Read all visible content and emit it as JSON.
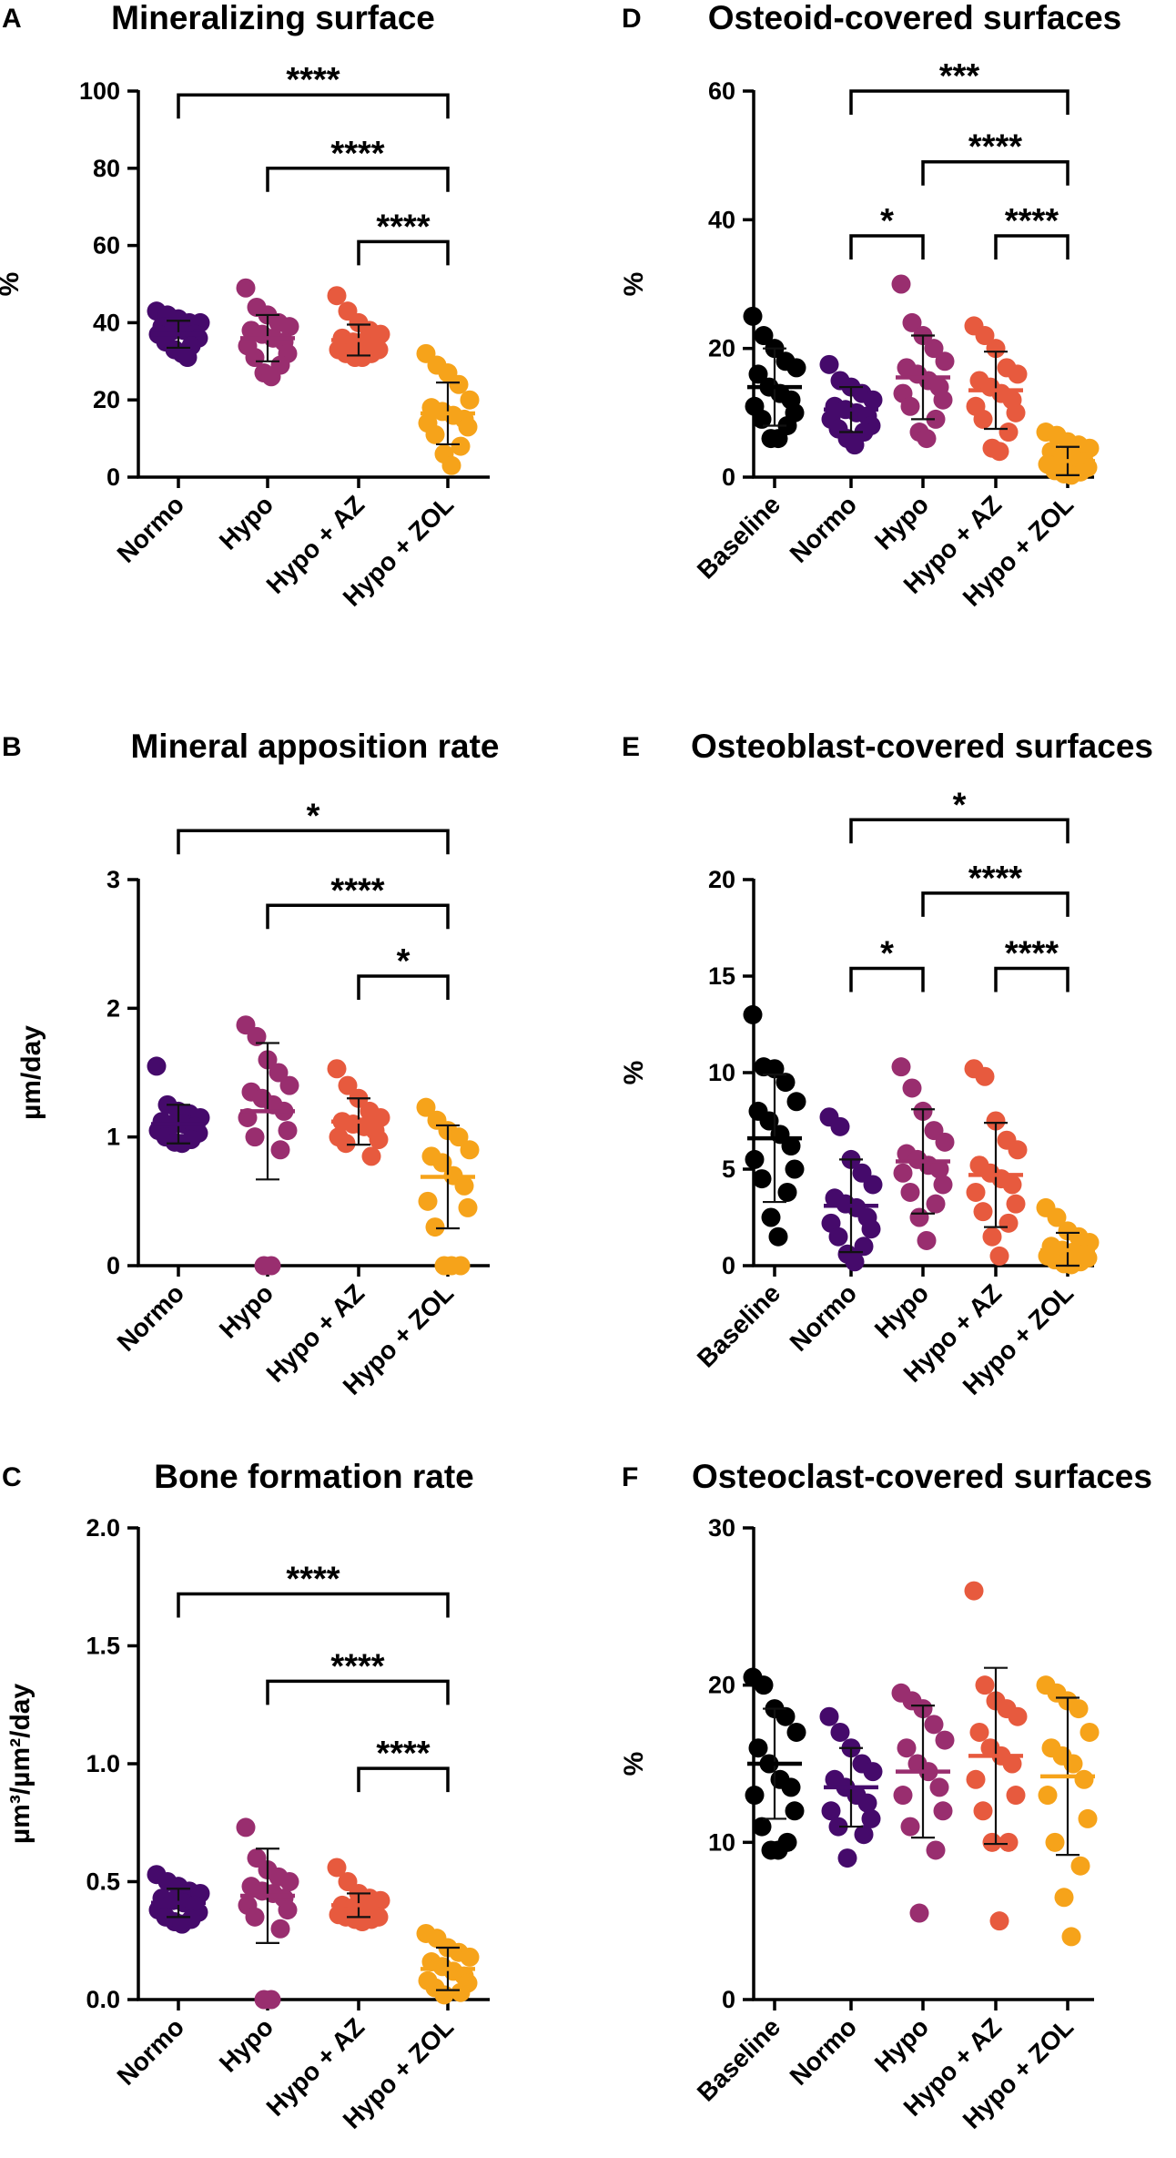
{
  "colors": {
    "Baseline": "#000000",
    "Normo": "#450a6b",
    "Hypo": "#992e6f",
    "Hypo + AZ": "#e75a3e",
    "Hypo + ZOL": "#f6a31a"
  },
  "chart_data": [
    {
      "id": "A",
      "type": "scatter",
      "title": "Mineralizing surface",
      "ylabel": "%",
      "categories": [
        "Normo",
        "Hypo",
        "Hypo + AZ",
        "Hypo + ZOL"
      ],
      "ylim": [
        0,
        100
      ],
      "yticks": [
        0,
        20,
        40,
        60,
        80,
        100
      ],
      "series": [
        {
          "name": "Normo",
          "mean": 37,
          "sd": 3.5,
          "values": [
            43,
            42,
            41,
            40,
            40,
            39,
            38,
            38,
            37,
            37,
            36,
            35,
            34,
            33,
            32,
            31
          ]
        },
        {
          "name": "Hypo",
          "mean": 36,
          "sd": 6,
          "values": [
            49,
            44,
            42,
            40,
            39,
            38,
            37,
            36,
            35,
            34,
            32,
            31,
            29,
            27,
            26
          ]
        },
        {
          "name": "Hypo + AZ",
          "mean": 35.5,
          "sd": 4,
          "values": [
            47,
            43,
            40,
            38,
            37,
            36,
            35,
            35,
            34,
            33,
            33,
            32,
            32,
            31,
            31
          ]
        },
        {
          "name": "Hypo + ZOL",
          "mean": 16.5,
          "sd": 8,
          "values": [
            32,
            29,
            27,
            24,
            20,
            18,
            17,
            16,
            15,
            14,
            13,
            11,
            8,
            6,
            3
          ]
        }
      ],
      "comparisons": [
        {
          "from": "Normo",
          "to": "Hypo + ZOL",
          "y": 99,
          "label": "****"
        },
        {
          "from": "Hypo",
          "to": "Hypo + ZOL",
          "y": 80,
          "label": "****"
        },
        {
          "from": "Hypo + AZ",
          "to": "Hypo + ZOL",
          "y": 61,
          "label": "****"
        }
      ]
    },
    {
      "id": "B",
      "type": "scatter",
      "title": "Mineral apposition rate",
      "ylabel": "µm/day",
      "categories": [
        "Normo",
        "Hypo",
        "Hypo + AZ",
        "Hypo + ZOL"
      ],
      "ylim": [
        0,
        3
      ],
      "yticks": [
        0,
        1,
        2,
        3
      ],
      "series": [
        {
          "name": "Normo",
          "mean": 1.1,
          "sd": 0.15,
          "values": [
            1.55,
            1.25,
            1.2,
            1.18,
            1.15,
            1.12,
            1.1,
            1.1,
            1.08,
            1.05,
            1.03,
            1.0,
            0.98,
            0.96,
            0.95
          ]
        },
        {
          "name": "Hypo",
          "mean": 1.2,
          "sd": 0.53,
          "values": [
            1.87,
            1.78,
            1.6,
            1.5,
            1.4,
            1.35,
            1.3,
            1.25,
            1.2,
            1.15,
            1.05,
            1.0,
            0.9,
            0,
            0
          ]
        },
        {
          "name": "Hypo + AZ",
          "mean": 1.12,
          "sd": 0.18,
          "values": [
            1.53,
            1.4,
            1.3,
            1.2,
            1.15,
            1.12,
            1.1,
            1.08,
            1.05,
            1.0,
            0.98,
            0.95,
            0.85
          ]
        },
        {
          "name": "Hypo + ZOL",
          "mean": 0.69,
          "sd": 0.4,
          "values": [
            1.23,
            1.13,
            1.05,
            1.0,
            0.9,
            0.85,
            0.8,
            0.7,
            0.62,
            0.5,
            0.45,
            0.3,
            0,
            0,
            0
          ]
        }
      ],
      "comparisons": [
        {
          "from": "Normo",
          "to": "Hypo + ZOL",
          "y": 3.38,
          "label": "*"
        },
        {
          "from": "Hypo",
          "to": "Hypo + ZOL",
          "y": 2.8,
          "label": "****"
        },
        {
          "from": "Hypo + AZ",
          "to": "Hypo + ZOL",
          "y": 2.25,
          "label": "*"
        }
      ]
    },
    {
      "id": "C",
      "type": "scatter",
      "title": "Bone formation rate",
      "ylabel": "µm³/µm²/day",
      "categories": [
        "Normo",
        "Hypo",
        "Hypo + AZ",
        "Hypo + ZOL"
      ],
      "ylim": [
        0,
        2
      ],
      "yticks": [
        "0.0",
        "0.5",
        "1.0",
        "1.5",
        "2.0"
      ],
      "series": [
        {
          "name": "Normo",
          "mean": 0.41,
          "sd": 0.06,
          "values": [
            0.53,
            0.5,
            0.48,
            0.46,
            0.45,
            0.43,
            0.42,
            0.41,
            0.4,
            0.38,
            0.37,
            0.35,
            0.34,
            0.33,
            0.32
          ]
        },
        {
          "name": "Hypo",
          "mean": 0.44,
          "sd": 0.2,
          "values": [
            0.73,
            0.6,
            0.55,
            0.52,
            0.5,
            0.48,
            0.46,
            0.45,
            0.43,
            0.4,
            0.38,
            0.35,
            0.3,
            0,
            0
          ]
        },
        {
          "name": "Hypo + AZ",
          "mean": 0.4,
          "sd": 0.05,
          "values": [
            0.56,
            0.5,
            0.45,
            0.43,
            0.42,
            0.4,
            0.39,
            0.38,
            0.37,
            0.36,
            0.35,
            0.35,
            0.34,
            0.34,
            0.33
          ]
        },
        {
          "name": "Hypo + ZOL",
          "mean": 0.13,
          "sd": 0.09,
          "values": [
            0.28,
            0.26,
            0.22,
            0.2,
            0.18,
            0.16,
            0.14,
            0.12,
            0.1,
            0.08,
            0.07,
            0.05,
            0.03,
            0.02
          ]
        }
      ],
      "comparisons": [
        {
          "from": "Normo",
          "to": "Hypo + ZOL",
          "y": 1.72,
          "label": "****"
        },
        {
          "from": "Hypo",
          "to": "Hypo + ZOL",
          "y": 1.35,
          "label": "****"
        },
        {
          "from": "Hypo + AZ",
          "to": "Hypo + ZOL",
          "y": 0.98,
          "label": "****"
        }
      ]
    },
    {
      "id": "D",
      "type": "scatter",
      "title": "Osteoid-covered surfaces",
      "ylabel": "%",
      "categories": [
        "Baseline",
        "Normo",
        "Hypo",
        "Hypo + AZ",
        "Hypo + ZOL"
      ],
      "ylim": [
        0,
        60
      ],
      "yticks": [
        0,
        20,
        40,
        60
      ],
      "series": [
        {
          "name": "Baseline",
          "mean": 14,
          "sd": 6,
          "values": [
            25,
            22,
            20,
            18,
            17,
            16,
            14,
            13,
            12,
            11,
            10,
            9,
            8,
            6,
            6
          ]
        },
        {
          "name": "Normo",
          "mean": 10.5,
          "sd": 3.5,
          "values": [
            17.5,
            15,
            14,
            13,
            12,
            11,
            10.5,
            10,
            9.5,
            9,
            8,
            7.5,
            7,
            6,
            5
          ]
        },
        {
          "name": "Hypo",
          "mean": 15.5,
          "sd": 6.5,
          "values": [
            30,
            24,
            22,
            20,
            18,
            17,
            16,
            15,
            14,
            13,
            12,
            11,
            9,
            7,
            6
          ]
        },
        {
          "name": "Hypo + AZ",
          "mean": 13.5,
          "sd": 6,
          "values": [
            23.5,
            22,
            20,
            17,
            16,
            15,
            14,
            13,
            12,
            11,
            10,
            9,
            7,
            4.5,
            4
          ]
        },
        {
          "name": "Hypo + ZOL",
          "mean": 2.5,
          "sd": 2.2,
          "values": [
            7,
            6.5,
            5.5,
            5,
            4.5,
            4,
            3,
            3,
            2.5,
            2,
            1.5,
            1,
            0.8,
            0.5,
            0.3
          ]
        }
      ],
      "comparisons": [
        {
          "from": "Normo",
          "to": "Hypo + ZOL",
          "y": 60,
          "label": "***"
        },
        {
          "from": "Hypo",
          "to": "Hypo + ZOL",
          "y": 49,
          "label": "****"
        },
        {
          "from": "Normo",
          "to": "Hypo",
          "y": 37.5,
          "label": "*"
        },
        {
          "from": "Hypo + AZ",
          "to": "Hypo + ZOL",
          "y": 37.5,
          "label": "****"
        }
      ]
    },
    {
      "id": "E",
      "type": "scatter",
      "title": "Osteoblast-covered surfaces",
      "ylabel": "%",
      "categories": [
        "Baseline",
        "Normo",
        "Hypo",
        "Hypo + AZ",
        "Hypo + ZOL"
      ],
      "ylim": [
        0,
        20
      ],
      "yticks": [
        0,
        5,
        10,
        15,
        20
      ],
      "series": [
        {
          "name": "Baseline",
          "mean": 6.6,
          "sd": 3.3,
          "values": [
            13,
            10.3,
            10.2,
            9.5,
            8.5,
            8,
            7.5,
            6.8,
            6.2,
            5.5,
            5,
            4.5,
            3.8,
            2.5,
            1.5
          ]
        },
        {
          "name": "Normo",
          "mean": 3.1,
          "sd": 2.4,
          "values": [
            7.7,
            7.2,
            5.5,
            4.8,
            4.2,
            3.5,
            3.2,
            3,
            2.5,
            2.2,
            1.9,
            1.5,
            1,
            0.6,
            0.2
          ]
        },
        {
          "name": "Hypo",
          "mean": 5.4,
          "sd": 2.7,
          "values": [
            10.3,
            9.2,
            8,
            7,
            6.4,
            5.8,
            5.5,
            5.2,
            5,
            4.8,
            4.2,
            3.8,
            3.2,
            2.5,
            1.3
          ]
        },
        {
          "name": "Hypo + AZ",
          "mean": 4.7,
          "sd": 2.7,
          "values": [
            10.2,
            9.8,
            7.5,
            6.5,
            6,
            5.2,
            4.8,
            4.5,
            4.2,
            3.8,
            3.2,
            2.8,
            2.2,
            1.5,
            0.5
          ]
        },
        {
          "name": "Hypo + ZOL",
          "mean": 0.8,
          "sd": 0.9,
          "values": [
            3,
            2.5,
            1.8,
            1.5,
            1.2,
            1,
            0.8,
            0.7,
            0.6,
            0.5,
            0.4,
            0.3,
            0.2,
            0.1,
            0.05
          ]
        }
      ],
      "comparisons": [
        {
          "from": "Normo",
          "to": "Hypo + ZOL",
          "y": 23.1,
          "label": "*"
        },
        {
          "from": "Hypo",
          "to": "Hypo + ZOL",
          "y": 19.3,
          "label": "****"
        },
        {
          "from": "Normo",
          "to": "Hypo",
          "y": 15.4,
          "label": "*"
        },
        {
          "from": "Hypo + AZ",
          "to": "Hypo + ZOL",
          "y": 15.4,
          "label": "****"
        }
      ]
    },
    {
      "id": "F",
      "type": "scatter",
      "title": "Osteoclast-covered surfaces",
      "ylabel": "%",
      "categories": [
        "Baseline",
        "Normo",
        "Hypo",
        "Hypo + AZ",
        "Hypo + ZOL"
      ],
      "ylim": [
        0,
        30
      ],
      "yticks": [
        0,
        10,
        20,
        30
      ],
      "series": [
        {
          "name": "Baseline",
          "mean": 15,
          "sd": 3.5,
          "values": [
            20.5,
            20,
            18.5,
            18,
            17,
            16,
            15,
            14,
            13.5,
            13,
            12,
            11,
            10,
            9.5,
            9.5
          ]
        },
        {
          "name": "Normo",
          "mean": 13.5,
          "sd": 2.5,
          "values": [
            18,
            17,
            16,
            15,
            14.5,
            14,
            13.5,
            13,
            12.5,
            12,
            11.5,
            11,
            10.5,
            9
          ]
        },
        {
          "name": "Hypo",
          "mean": 14.5,
          "sd": 4.2,
          "values": [
            19.5,
            19,
            18.5,
            17.5,
            16.5,
            16,
            15,
            14.5,
            13.5,
            13,
            12,
            11,
            9.5,
            5.5
          ]
        },
        {
          "name": "Hypo + AZ",
          "mean": 15.5,
          "sd": 5.6,
          "values": [
            26,
            20,
            19,
            18.5,
            18,
            17,
            16,
            15.5,
            15,
            14,
            13,
            12,
            10,
            10,
            5
          ]
        },
        {
          "name": "Hypo + ZOL",
          "mean": 14.2,
          "sd": 5,
          "values": [
            20,
            19.5,
            19,
            18.5,
            17,
            16,
            15.5,
            15,
            14,
            13,
            11.5,
            10,
            8.5,
            6.5,
            4
          ]
        }
      ],
      "comparisons": []
    }
  ]
}
